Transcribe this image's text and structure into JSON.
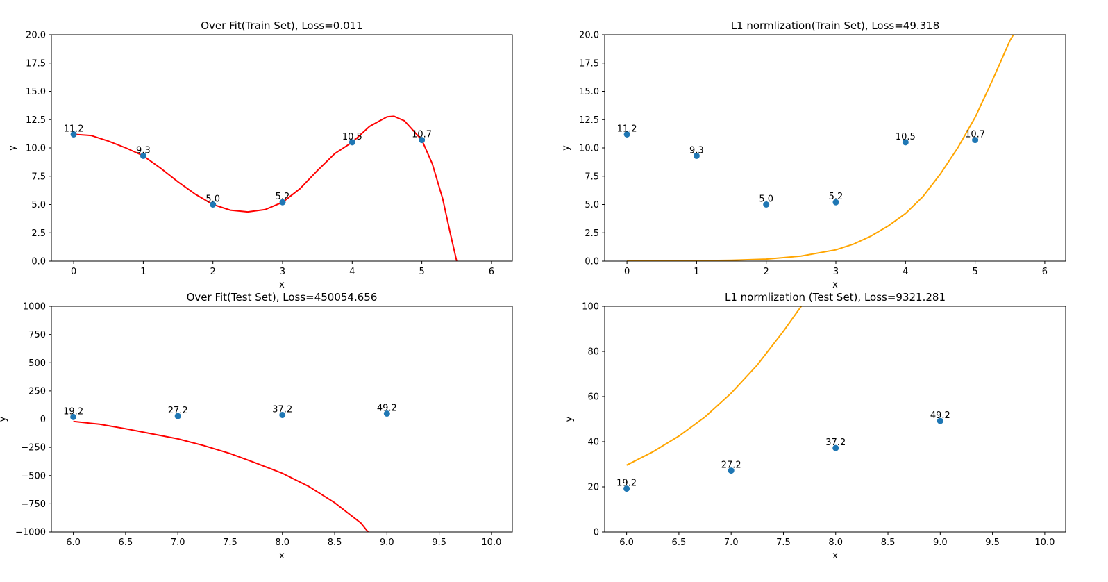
{
  "chart_data": [
    {
      "type": "scatter",
      "title": "Over Fit(Train Set), Loss=0.011",
      "xlabel": "x",
      "ylabel": "y",
      "xlim": [
        -0.32,
        6.3
      ],
      "ylim": [
        0,
        20
      ],
      "xticks": [
        "0",
        "1",
        "2",
        "3",
        "4",
        "5",
        "6"
      ],
      "yticks": [
        "0.0",
        "2.5",
        "5.0",
        "7.5",
        "10.0",
        "12.5",
        "15.0",
        "17.5",
        "20.0"
      ],
      "xtick_values": [
        0,
        1,
        2,
        3,
        4,
        5,
        6
      ],
      "ytick_values": [
        0,
        2.5,
        5,
        7.5,
        10,
        12.5,
        15,
        17.5,
        20
      ],
      "points": {
        "x": [
          0,
          1,
          2,
          3,
          4,
          5
        ],
        "y": [
          11.2,
          9.3,
          5.0,
          5.2,
          10.5,
          10.7
        ],
        "labels": [
          "11.2",
          "9.3",
          "5.0",
          "5.2",
          "10.5",
          "10.7"
        ],
        "color": "#1f77b4"
      },
      "curve": {
        "color": "#ff0000",
        "x": [
          0,
          0.25,
          0.5,
          0.75,
          1,
          1.25,
          1.5,
          1.75,
          2,
          2.25,
          2.5,
          2.75,
          3,
          3.25,
          3.5,
          3.75,
          4,
          4.25,
          4.5,
          4.6,
          4.75,
          5,
          5.15,
          5.3,
          5.4,
          5.5
        ],
        "y": [
          11.2,
          11.1,
          10.6,
          10.0,
          9.3,
          8.2,
          7.0,
          5.9,
          5.0,
          4.5,
          4.35,
          4.55,
          5.2,
          6.4,
          8.0,
          9.5,
          10.5,
          11.9,
          12.75,
          12.8,
          12.4,
          10.7,
          8.6,
          5.5,
          2.7,
          0
        ]
      }
    },
    {
      "type": "scatter",
      "title": "L1 normlization(Train Set), Loss=49.318",
      "xlabel": "",
      "ylabel": "y",
      "xlim": [
        -0.32,
        6.3
      ],
      "ylim": [
        0,
        20
      ],
      "xticks": [
        "0",
        "1",
        "2",
        "3",
        "4",
        "5",
        "6"
      ],
      "yticks": [
        "0.0",
        "2.5",
        "5.0",
        "7.5",
        "10.0",
        "12.5",
        "15.0",
        "17.5",
        "20.0"
      ],
      "xtick_values": [
        0,
        1,
        2,
        3,
        4,
        5,
        6
      ],
      "ytick_values": [
        0,
        2.5,
        5,
        7.5,
        10,
        12.5,
        15,
        17.5,
        20
      ],
      "points": {
        "x": [
          0,
          1,
          2,
          3,
          4,
          5
        ],
        "y": [
          11.2,
          9.3,
          5.0,
          5.2,
          10.5,
          10.7
        ],
        "labels": [
          "11.2",
          "9.3",
          "5.0",
          "5.2",
          "10.5",
          "10.7"
        ],
        "color": "#1f77b4"
      },
      "curve": {
        "color": "#ffa500",
        "x": [
          0,
          0.5,
          1,
          1.5,
          2,
          2.5,
          3,
          3.25,
          3.5,
          3.75,
          4,
          4.25,
          4.5,
          4.75,
          5,
          5.25,
          5.5,
          5.55
        ],
        "y": [
          0,
          0.01,
          0.03,
          0.08,
          0.18,
          0.45,
          1.0,
          1.5,
          2.2,
          3.1,
          4.2,
          5.7,
          7.7,
          10.0,
          12.7,
          16.0,
          19.5,
          20
        ]
      }
    },
    {
      "type": "scatter",
      "title": "Over Fit(Test Set), Loss=450054.656",
      "xlabel": "x",
      "ylabel": "y",
      "xlim": [
        5.79,
        10.2
      ],
      "ylim": [
        -1000,
        1000
      ],
      "xticks": [
        "6.0",
        "6.5",
        "7.0",
        "7.5",
        "8.0",
        "8.5",
        "9.0",
        "9.5",
        "10.0"
      ],
      "yticks": [
        "−1000",
        "−750",
        "−500",
        "−250",
        "0",
        "250",
        "500",
        "750",
        "1000"
      ],
      "xtick_values": [
        6,
        6.5,
        7,
        7.5,
        8,
        8.5,
        9,
        9.5,
        10
      ],
      "ytick_values": [
        -1000,
        -750,
        -500,
        -250,
        0,
        250,
        500,
        750,
        1000
      ],
      "points": {
        "x": [
          6,
          7,
          8,
          9
        ],
        "y": [
          19.2,
          27.2,
          37.2,
          49.2
        ],
        "labels": [
          "19.2",
          "27.2",
          "37.2",
          "49.2"
        ],
        "color": "#1f77b4"
      },
      "curve": {
        "color": "#ff0000",
        "x": [
          6,
          6.25,
          6.5,
          6.75,
          7,
          7.25,
          7.5,
          7.75,
          8,
          8.25,
          8.5,
          8.75,
          8.82
        ],
        "y": [
          -20,
          -45,
          -85,
          -130,
          -175,
          -235,
          -305,
          -390,
          -480,
          -595,
          -740,
          -920,
          -1000
        ]
      }
    },
    {
      "type": "scatter",
      "title": "L1 normlization (Test Set), Loss=9321.281",
      "xlabel": "x",
      "ylabel": "y",
      "xlim": [
        5.79,
        10.2
      ],
      "ylim": [
        0,
        100
      ],
      "xticks": [
        "6.0",
        "6.5",
        "7.0",
        "7.5",
        "8.0",
        "8.5",
        "9.0",
        "9.5",
        "10.0"
      ],
      "yticks": [
        "0",
        "20",
        "40",
        "60",
        "80",
        "100"
      ],
      "xtick_values": [
        6,
        6.5,
        7,
        7.5,
        8,
        8.5,
        9,
        9.5,
        10
      ],
      "ytick_values": [
        0,
        20,
        40,
        60,
        80,
        100
      ],
      "points": {
        "x": [
          6,
          7,
          8,
          9
        ],
        "y": [
          19.2,
          27.2,
          37.2,
          49.2
        ],
        "labels": [
          "19.2",
          "27.2",
          "37.2",
          "49.2"
        ],
        "color": "#1f77b4"
      },
      "curve": {
        "color": "#ffa500",
        "x": [
          6,
          6.25,
          6.5,
          6.75,
          7,
          7.25,
          7.5,
          7.67
        ],
        "y": [
          29.6,
          35.5,
          42.5,
          51,
          61.5,
          74,
          89,
          100
        ]
      }
    }
  ]
}
